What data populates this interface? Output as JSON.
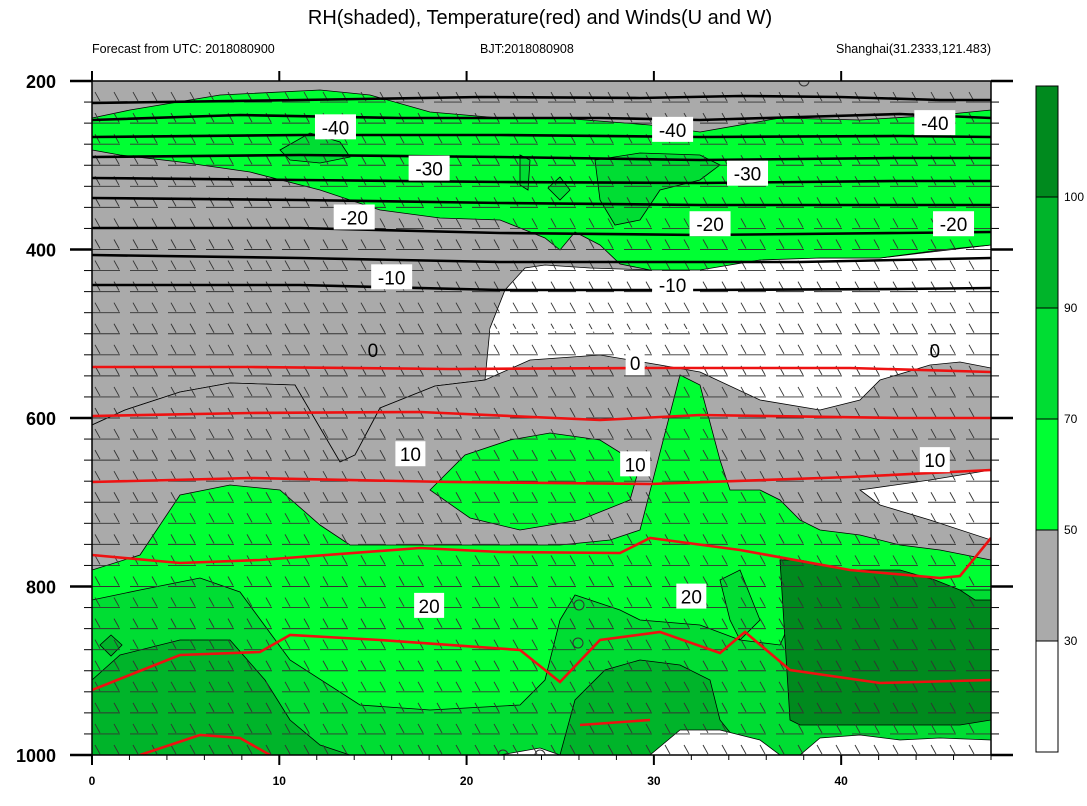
{
  "title": "RH(shaded), Temperature(red) and Winds(U and W)",
  "subtitle_left": "Forecast from UTC: 2018080900",
  "subtitle_center": "BJT:2018080908",
  "subtitle_right": "Shanghai(31.2333,121.483)",
  "colors": {
    "rh_0_30": "#ffffff",
    "rh_30_50": "#aaaaaa",
    "rh_50_70": "#00ff33",
    "rh_70_90": "#00dd33",
    "rh_90_100": "#00b42a",
    "rh_100_plus": "#008a1e",
    "temperature_warm": "#ee1111",
    "temperature_zero": "#ffffff",
    "temperature_cold": "#000000",
    "wind_barbs": "#333333"
  },
  "chart_data": {
    "type": "heatmap",
    "title": "RH(shaded), Temperature(red) and Winds(U and W)",
    "xlim": [
      0,
      48
    ],
    "ylim": [
      1000,
      200
    ],
    "x_ticks": [
      "0",
      "10",
      "20",
      "30",
      "40"
    ],
    "x_tick_values": [
      0,
      10,
      20,
      30,
      40
    ],
    "y_ticks": [
      "200",
      "400",
      "600",
      "800",
      "1000"
    ],
    "y_tick_values": [
      200,
      400,
      600,
      800,
      1000
    ],
    "colorbar": {
      "levels": [
        30,
        50,
        70,
        90,
        100
      ],
      "labels": [
        "30",
        "50",
        "70",
        "90",
        "100"
      ]
    },
    "temperature_contours": [
      {
        "value": -40,
        "pressure": [
          230,
          250,
          265,
          270
        ]
      },
      {
        "value": -30,
        "pressure": [
          300,
          305,
          310,
          320
        ]
      },
      {
        "value": -20,
        "pressure": [
          350,
          355,
          362,
          370
        ]
      },
      {
        "value": -10,
        "pressure": [
          430,
          440,
          450,
          460
        ]
      },
      {
        "value": 0,
        "pressure": [
          515,
          518,
          520,
          520
        ]
      },
      {
        "value": 10,
        "pressure": [
          580,
          590,
          600,
          650
        ]
      },
      {
        "value": 20,
        "pressure": [
          735,
          780,
          820,
          840
        ]
      }
    ],
    "contour_labels": [
      {
        "text": "-40",
        "x": 13,
        "p": 255
      },
      {
        "text": "-40",
        "x": 31,
        "p": 258
      },
      {
        "text": "-40",
        "x": 45,
        "p": 250
      },
      {
        "text": "-30",
        "x": 18,
        "p": 304
      },
      {
        "text": "-30",
        "x": 35,
        "p": 310
      },
      {
        "text": "-20",
        "x": 14,
        "p": 362
      },
      {
        "text": "-20",
        "x": 33,
        "p": 370
      },
      {
        "text": "-20",
        "x": 46,
        "p": 370
      },
      {
        "text": "-10",
        "x": 16,
        "p": 433
      },
      {
        "text": "-10",
        "x": 31,
        "p": 442
      },
      {
        "text": "0",
        "x": 15,
        "p": 519
      },
      {
        "text": "0",
        "x": 29,
        "p": 535
      },
      {
        "text": "0",
        "x": 45,
        "p": 520
      },
      {
        "text": "10",
        "x": 17,
        "p": 643
      },
      {
        "text": "10",
        "x": 29,
        "p": 655
      },
      {
        "text": "10",
        "x": 45,
        "p": 650
      },
      {
        "text": "20",
        "x": 18,
        "p": 823
      },
      {
        "text": "20",
        "x": 32,
        "p": 812
      }
    ]
  }
}
